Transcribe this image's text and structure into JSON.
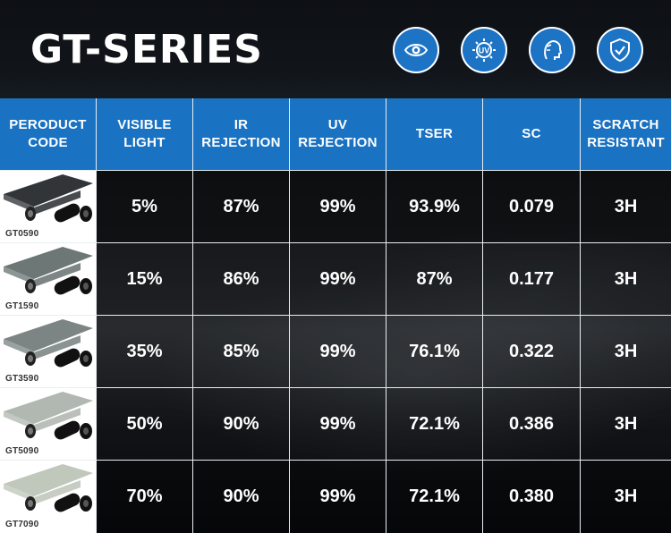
{
  "header": {
    "title": "GT-SERIES",
    "icons": [
      "eye-icon",
      "uv-icon",
      "cool-face-icon",
      "shield-check-icon"
    ]
  },
  "table": {
    "columns": [
      "PERODUCT\nCODE",
      "VISIBLE\nLIGHT",
      "IR\nREJECTION",
      "UV\nREJECTION",
      "TSER",
      "SC",
      "SCRATCH\nRESISTANT"
    ],
    "rows": [
      {
        "code": "GT0590",
        "visible_light": "5%",
        "ir_rejection": "87%",
        "uv_rejection": "99%",
        "tser": "93.9%",
        "sc": "0.079",
        "scratch": "3H",
        "tint": "#1b1f22"
      },
      {
        "code": "GT1590",
        "visible_light": "15%",
        "ir_rejection": "86%",
        "uv_rejection": "99%",
        "tser": "87%",
        "sc": "0.177",
        "scratch": "3H",
        "tint": "#5d6866"
      },
      {
        "code": "GT3590",
        "visible_light": "35%",
        "ir_rejection": "85%",
        "uv_rejection": "99%",
        "tser": "76.1%",
        "sc": "0.322",
        "scratch": "3H",
        "tint": "#6e7777"
      },
      {
        "code": "GT5090",
        "visible_light": "50%",
        "ir_rejection": "90%",
        "uv_rejection": "99%",
        "tser": "72.1%",
        "sc": "0.386",
        "scratch": "3H",
        "tint": "#a9b0a8"
      },
      {
        "code": "GT7090",
        "visible_light": "70%",
        "ir_rejection": "90%",
        "uv_rejection": "99%",
        "tser": "72.1%",
        "sc": "0.380",
        "scratch": "3H",
        "tint": "#b9c1b4"
      }
    ]
  },
  "colors": {
    "accent": "#1a72c2",
    "divider": "#e9eef2"
  }
}
